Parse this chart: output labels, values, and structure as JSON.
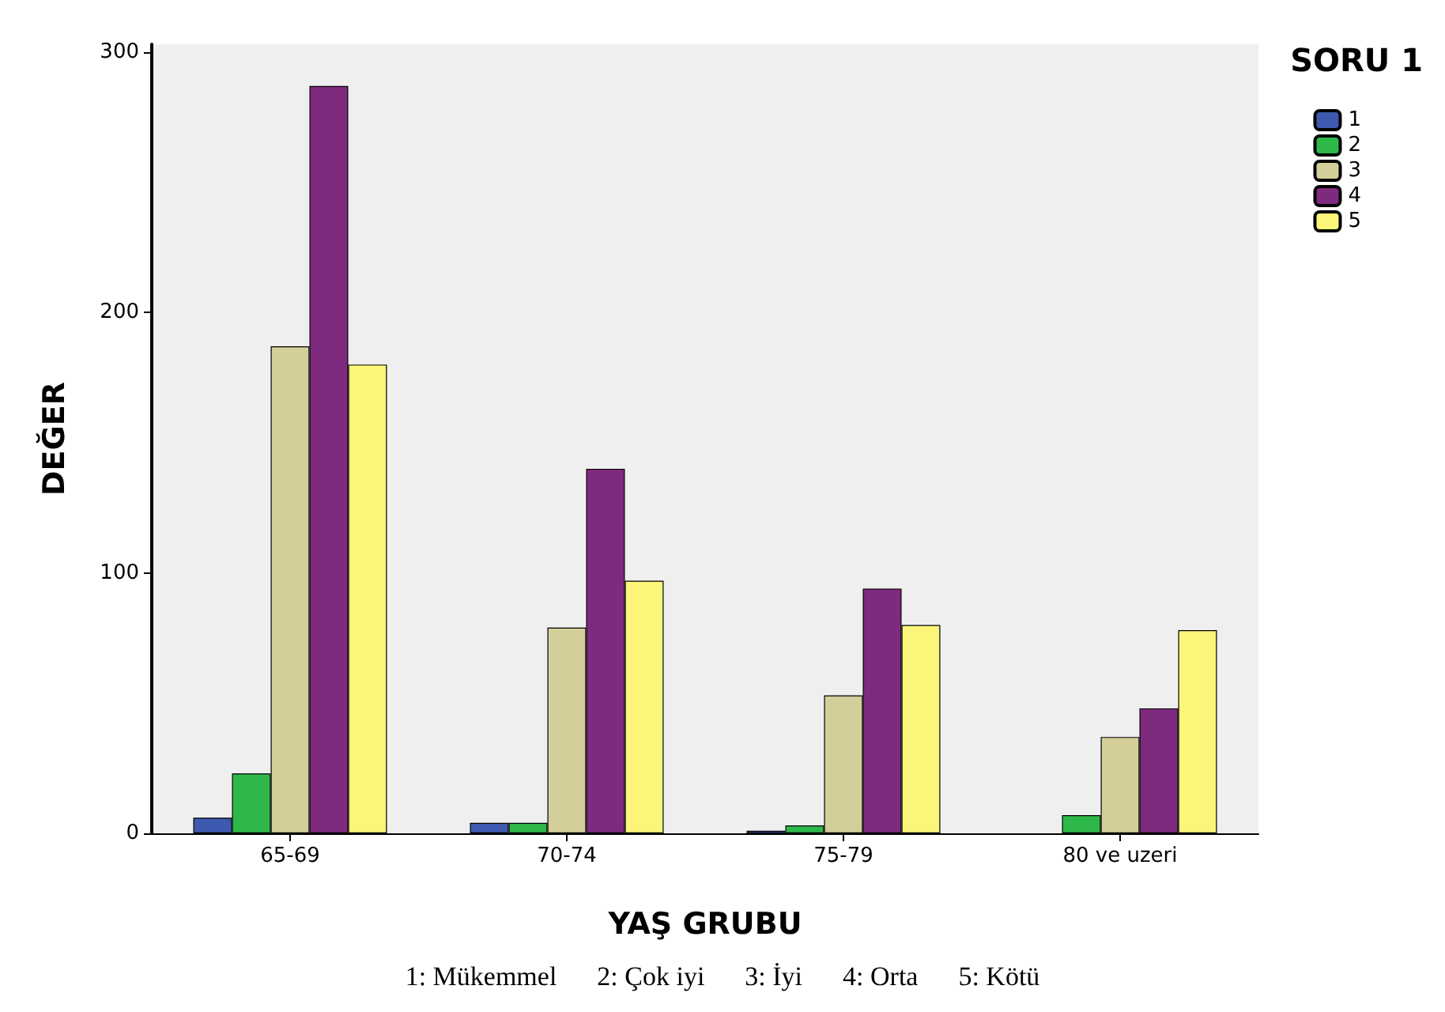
{
  "chart_data": {
    "type": "bar",
    "xlabel": "YAŞ GRUBU",
    "ylabel": "DEĞER",
    "legend_title": "SORU 1",
    "categories": [
      "65-69",
      "70-74",
      "75-79",
      "80 ve uzeri"
    ],
    "series": [
      {
        "name": "1",
        "color": "#3e5ab0",
        "values": [
          6,
          4,
          1,
          null
        ]
      },
      {
        "name": "2",
        "color": "#2fb84a",
        "values": [
          23,
          4,
          3,
          7
        ]
      },
      {
        "name": "3",
        "color": "#d4cf9a",
        "values": [
          187,
          79,
          53,
          37
        ]
      },
      {
        "name": "4",
        "color": "#7e2a7e",
        "values": [
          287,
          140,
          94,
          48
        ]
      },
      {
        "name": "5",
        "color": "#fbf57a",
        "values": [
          180,
          97,
          80,
          78
        ]
      }
    ],
    "ylim": [
      0,
      303
    ],
    "yticks": [
      0,
      100,
      200,
      300
    ],
    "grid": false,
    "legend": "top right",
    "annotations": [
      "1: Mükemmel      2: Çok iyi      3: İyi      4: Orta      5: Kötü"
    ]
  }
}
